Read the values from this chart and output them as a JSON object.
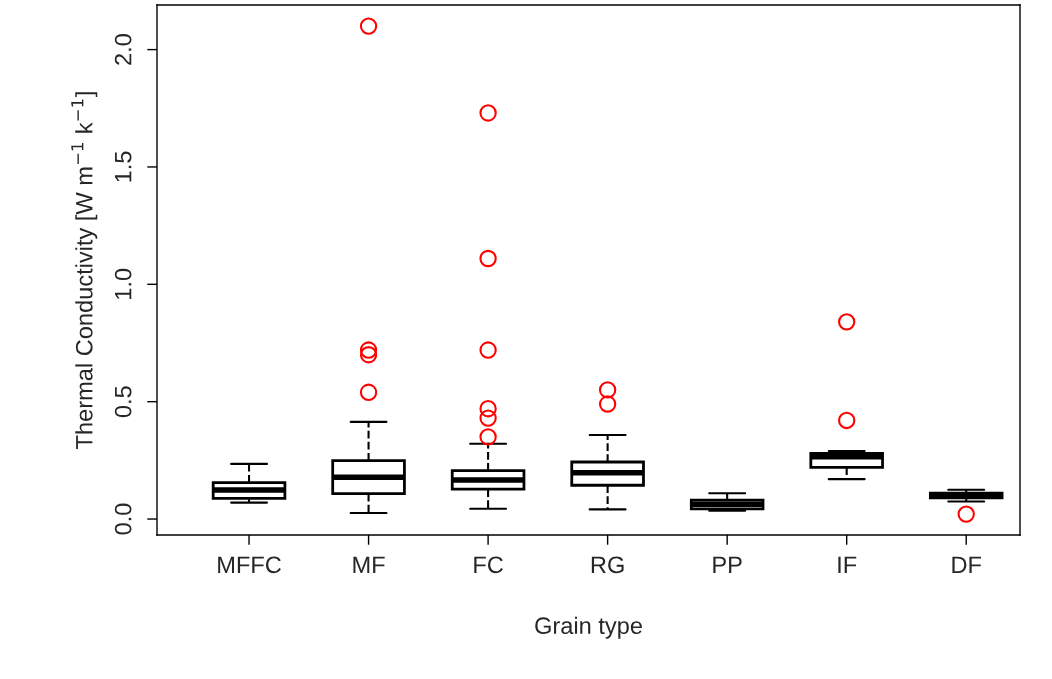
{
  "chart_data": {
    "type": "box",
    "xlabel": "Grain type",
    "ylabel": "Thermal Conductivity [W m$^{−1}$ k$^{−1}$]",
    "categories": [
      "MFFC",
      "MF",
      "FC",
      "RG",
      "PP",
      "IF",
      "DF"
    ],
    "ylim": [
      -0.068,
      2.19
    ],
    "yticks": [
      {
        "value": 0,
        "label": "0.0"
      },
      {
        "value": 0.5,
        "label": "0.5"
      },
      {
        "value": 1,
        "label": "1.0"
      },
      {
        "value": 1.5,
        "label": "1.5"
      },
      {
        "value": 2,
        "label": "2.0"
      }
    ],
    "boxes": [
      {
        "low": 0.07,
        "q1": 0.088,
        "median": 0.124,
        "q3": 0.155,
        "high": 0.235
      },
      {
        "low": 0.026,
        "q1": 0.108,
        "median": 0.178,
        "q3": 0.249,
        "high": 0.414,
        "outliers": [
          2.1,
          0.72,
          0.7,
          0.54
        ]
      },
      {
        "low": 0.044,
        "q1": 0.127,
        "median": 0.166,
        "q3": 0.206,
        "high": 0.321,
        "outliers": [
          1.73,
          1.11,
          0.72,
          0.47,
          0.43,
          0.35
        ]
      },
      {
        "low": 0.041,
        "q1": 0.144,
        "median": 0.197,
        "q3": 0.243,
        "high": 0.358,
        "outliers": [
          0.55,
          0.49
        ]
      },
      {
        "low": 0.035,
        "q1": 0.043,
        "median": 0.063,
        "q3": 0.081,
        "high": 0.11
      },
      {
        "low": 0.17,
        "q1": 0.22,
        "median": 0.265,
        "q3": 0.28,
        "high": 0.29,
        "outliers": [
          0.84,
          0.42
        ]
      },
      {
        "low": 0.075,
        "q1": 0.09,
        "median": 0.1,
        "q3": 0.11,
        "high": 0.125,
        "outliers": [
          0.021
        ]
      }
    ]
  }
}
